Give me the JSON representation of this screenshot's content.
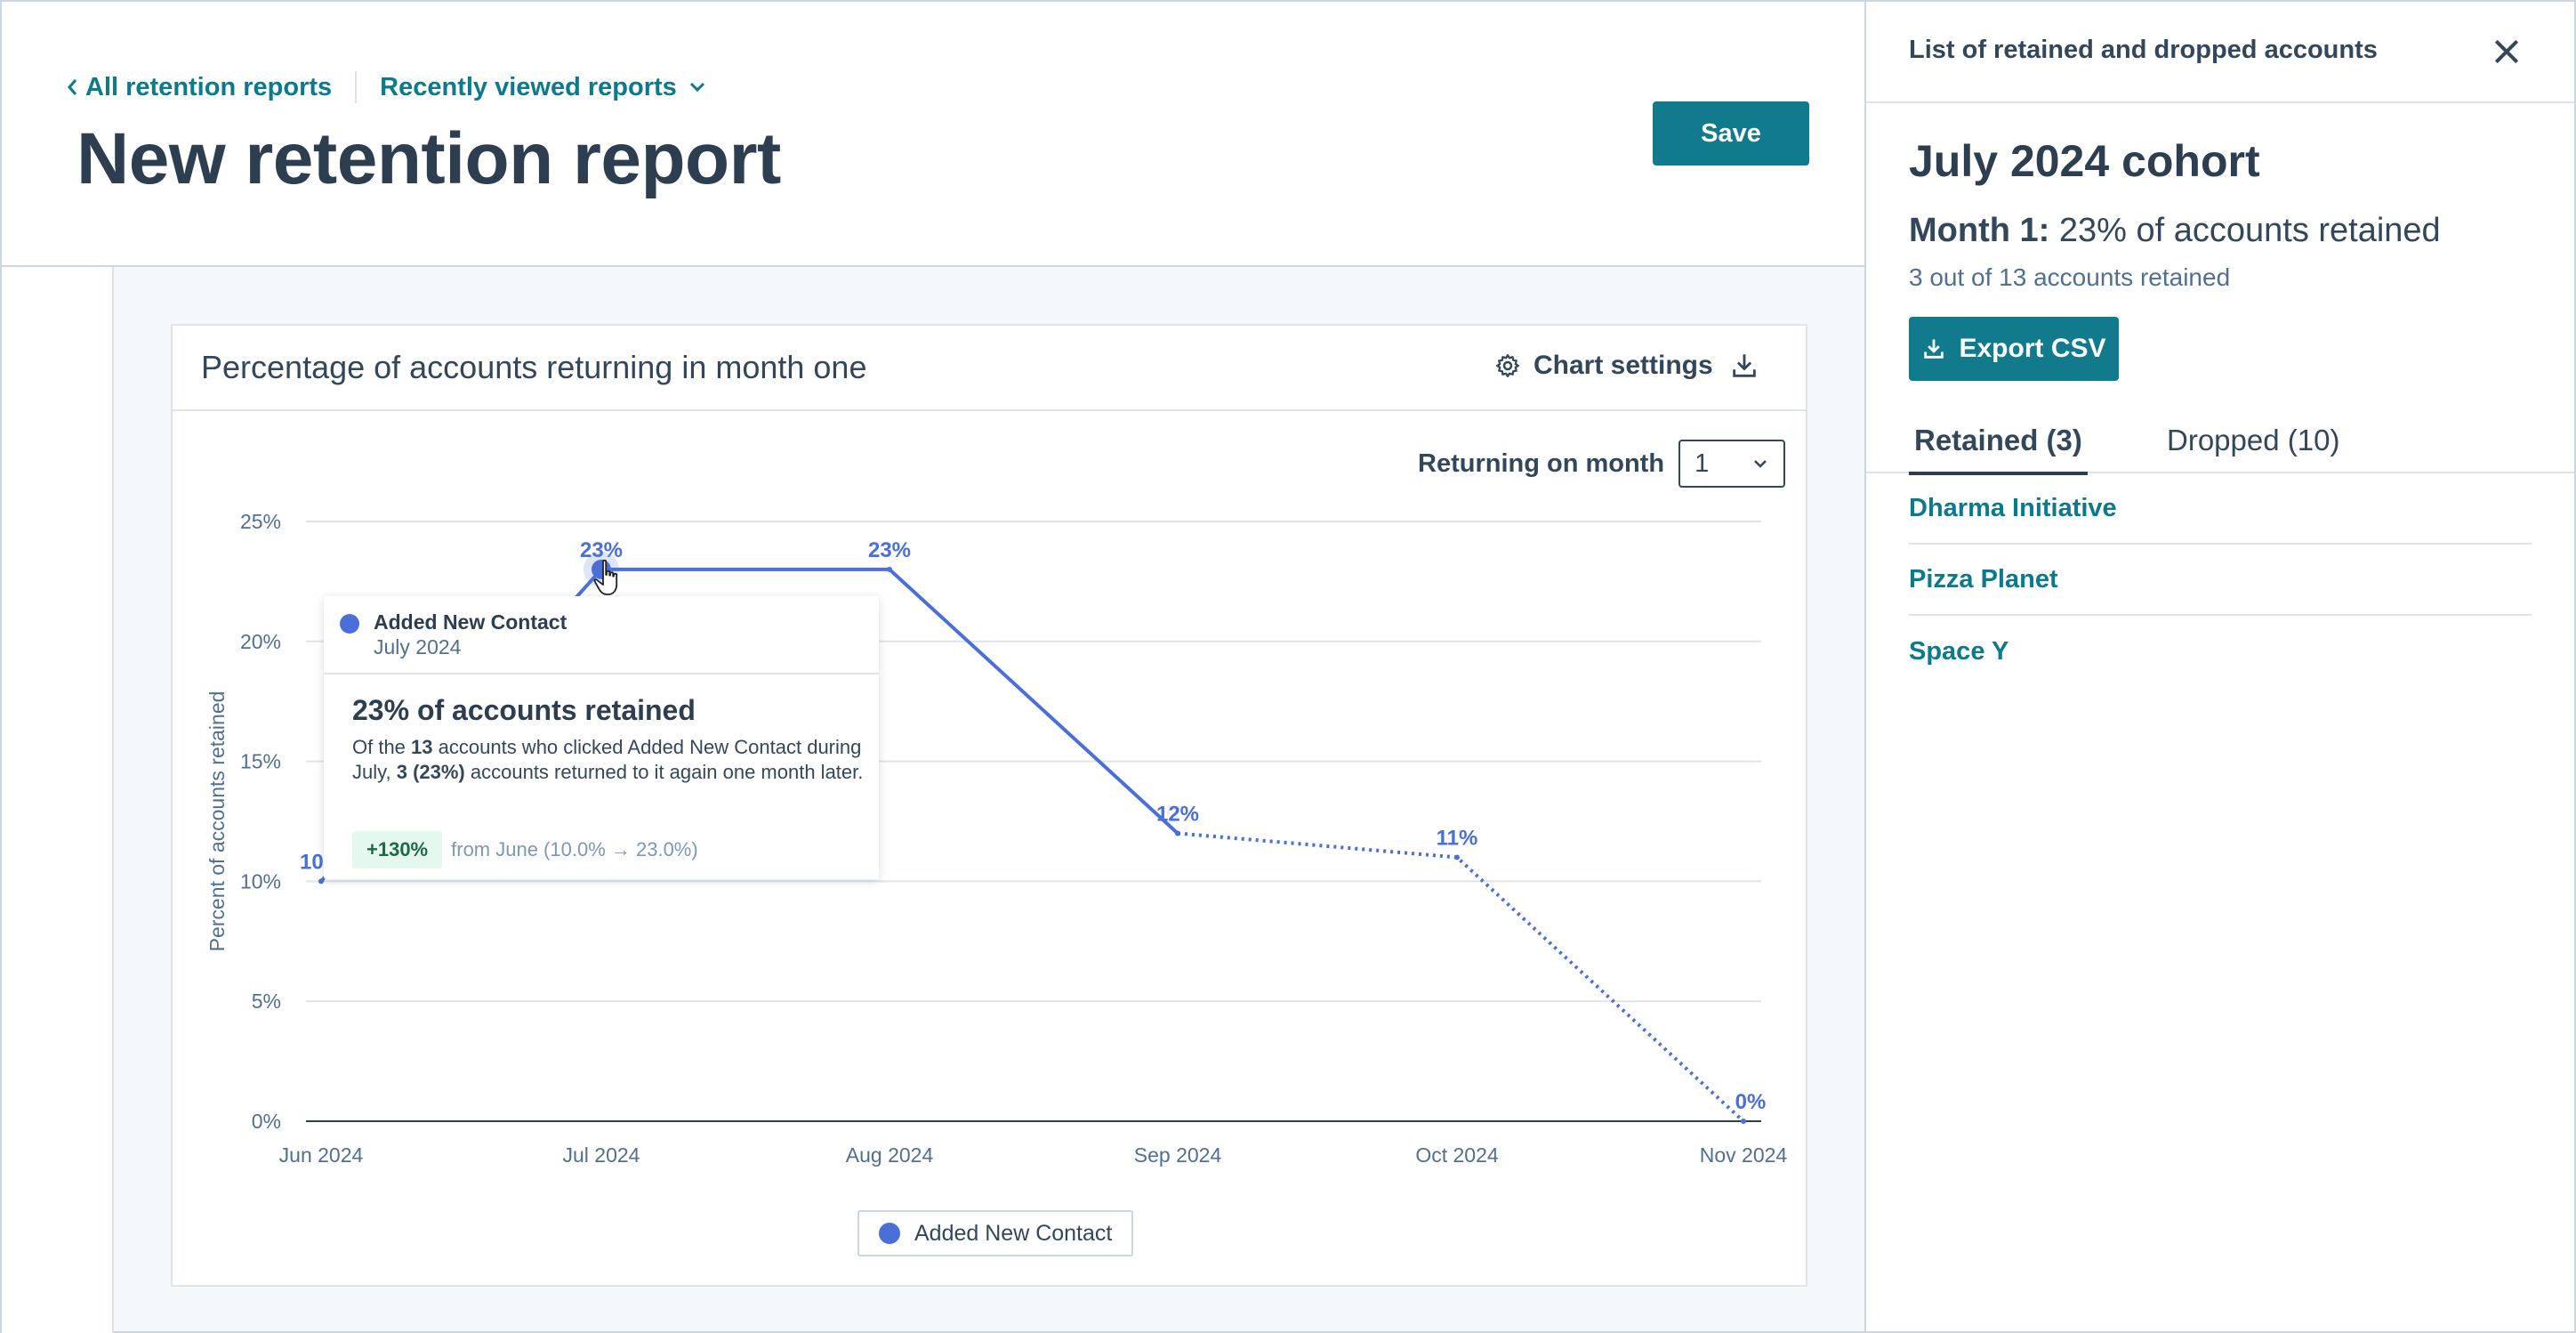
{
  "header": {
    "breadcrumb_back": "All retention reports",
    "breadcrumb_recent": "Recently viewed reports",
    "title": "New retention report",
    "save_label": "Save"
  },
  "card": {
    "title": "Percentage of accounts returning in month one",
    "chart_settings_label": "Chart settings",
    "returning_label": "Returning on month",
    "returning_value": "1"
  },
  "tooltip": {
    "series": "Added New Contact",
    "date": "July 2024",
    "title": "23% of accounts retained",
    "body_1": "Of the ",
    "body_total": "13",
    "body_2": " accounts who clicked Added New Contact during July, ",
    "body_returned": "3 (23%)",
    "body_3": " accounts returned to it again one month later.",
    "badge": "+130%",
    "from_text": "from June (10.0% → 23.0%)"
  },
  "chart_data": {
    "type": "line",
    "ylabel": "Percent of accounts retained",
    "xlabel": "",
    "categories": [
      "Jun 2024",
      "Jul 2024",
      "Aug 2024",
      "Sep 2024",
      "Oct 2024",
      "Nov 2024"
    ],
    "ylim": [
      0,
      25
    ],
    "yticks": [
      "0%",
      "5%",
      "10%",
      "15%",
      "20%",
      "25%"
    ],
    "yticks_values": [
      0,
      5,
      10,
      15,
      20,
      25
    ],
    "grid": true,
    "series": [
      {
        "name": "Added New Contact",
        "values": [
          10,
          23,
          23,
          12,
          11,
          0
        ],
        "labels": [
          "10%",
          "23%",
          "23%",
          "12%",
          "11%",
          "0%"
        ],
        "solid_through_index": 3,
        "color": "#4a6fd8"
      }
    ],
    "highlighted_index": 1,
    "legend": "bottom-center"
  },
  "panel": {
    "title": "List of retained and dropped accounts",
    "cohort_title": "July 2024 cohort",
    "month_label": "Month 1:",
    "month_value": "23% of accounts retained",
    "count_text": "3 out of 13 accounts retained",
    "export_label": "Export CSV",
    "tab_retained": "Retained (3)",
    "tab_dropped": "Dropped (10)",
    "accounts": [
      "Dharma Initiative",
      "Pizza Planet",
      "Space Y"
    ]
  },
  "colors": {
    "accent": "#117b8d",
    "link": "#0b7a8c",
    "series": "#4a6fd8"
  }
}
